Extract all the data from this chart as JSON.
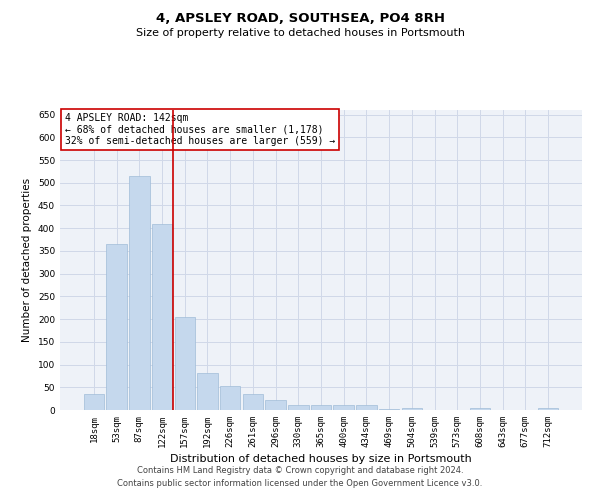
{
  "title": "4, APSLEY ROAD, SOUTHSEA, PO4 8RH",
  "subtitle": "Size of property relative to detached houses in Portsmouth",
  "xlabel": "Distribution of detached houses by size in Portsmouth",
  "ylabel": "Number of detached properties",
  "categories": [
    "18sqm",
    "53sqm",
    "87sqm",
    "122sqm",
    "157sqm",
    "192sqm",
    "226sqm",
    "261sqm",
    "296sqm",
    "330sqm",
    "365sqm",
    "400sqm",
    "434sqm",
    "469sqm",
    "504sqm",
    "539sqm",
    "573sqm",
    "608sqm",
    "643sqm",
    "677sqm",
    "712sqm"
  ],
  "values": [
    36,
    365,
    515,
    410,
    205,
    82,
    53,
    35,
    22,
    12,
    10,
    10,
    10,
    3,
    5,
    0,
    0,
    4,
    0,
    0,
    4
  ],
  "bar_color": "#c5d8ed",
  "bar_edgecolor": "#a0bcd8",
  "grid_color": "#d0d8e8",
  "background_color": "#eef2f8",
  "annotation_text": "4 APSLEY ROAD: 142sqm\n← 68% of detached houses are smaller (1,178)\n32% of semi-detached houses are larger (559) →",
  "vline_color": "#cc0000",
  "annotation_box_edgecolor": "#cc0000",
  "ylim": [
    0,
    660
  ],
  "yticks": [
    0,
    50,
    100,
    150,
    200,
    250,
    300,
    350,
    400,
    450,
    500,
    550,
    600,
    650
  ],
  "title_fontsize": 9.5,
  "subtitle_fontsize": 8,
  "ylabel_fontsize": 7.5,
  "xlabel_fontsize": 8,
  "tick_fontsize": 6.5,
  "annotation_fontsize": 7,
  "footer_fontsize": 6,
  "footer_line1": "Contains HM Land Registry data © Crown copyright and database right 2024.",
  "footer_line2": "Contains public sector information licensed under the Open Government Licence v3.0."
}
